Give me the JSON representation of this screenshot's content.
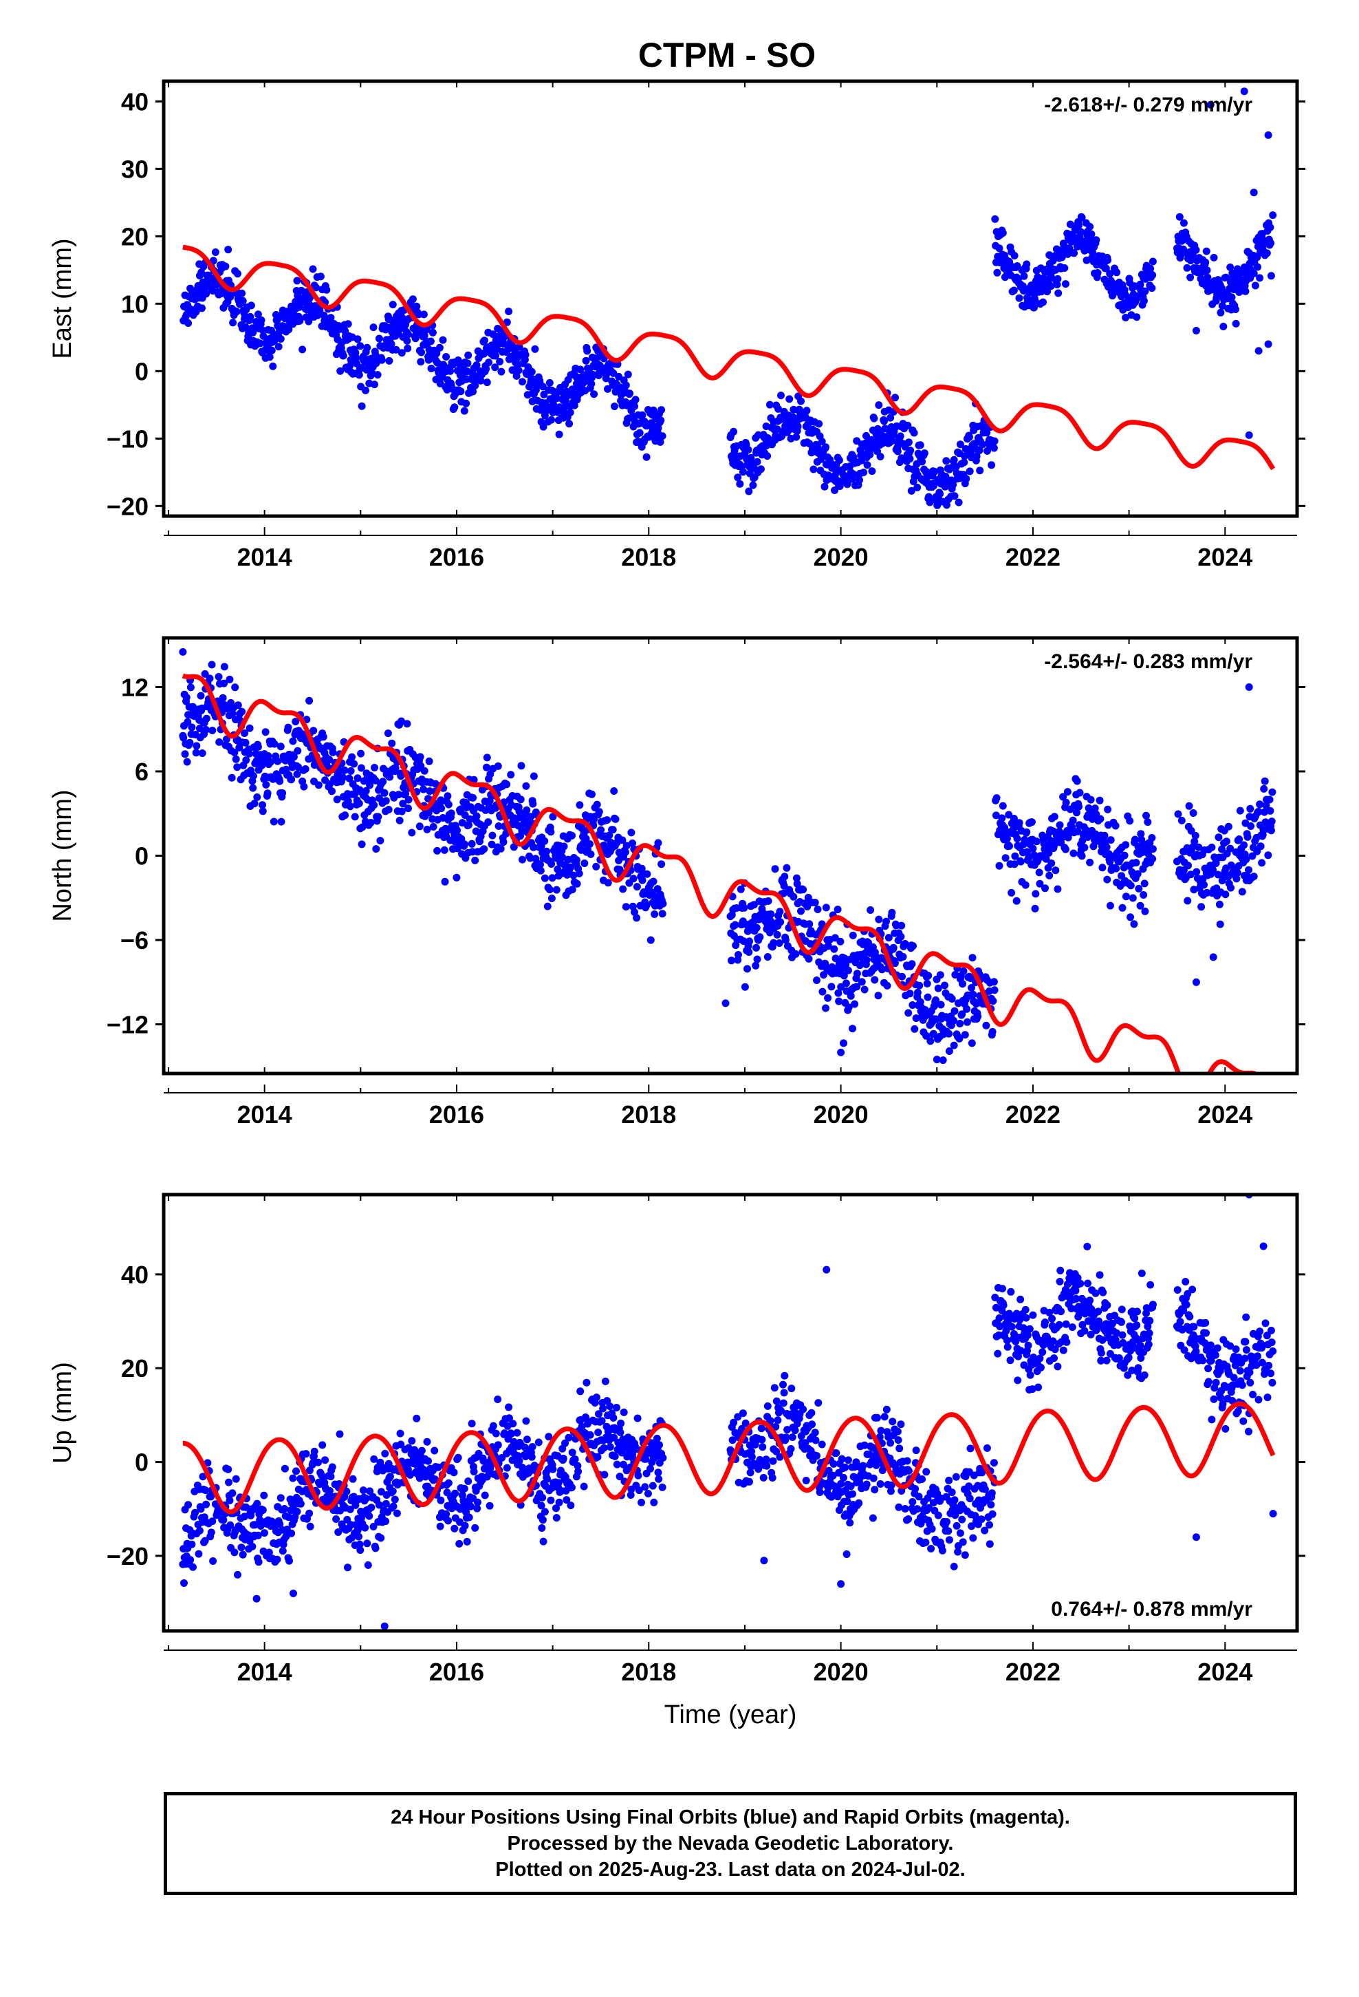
{
  "title": "CTPM - SO",
  "colors": {
    "final_orbits": "#0000ff",
    "model_fit": "#ff0000",
    "frame": "#000000"
  },
  "chart_data": [
    {
      "type": "scatter",
      "component": "east",
      "ylabel": "East (mm)",
      "xlabel": "",
      "xlim": [
        2012.95,
        2024.75
      ],
      "ylim": [
        -21.5,
        43
      ],
      "yticks": [
        -20,
        -10,
        0,
        10,
        20,
        30,
        40
      ],
      "xticks": [
        2014,
        2016,
        2018,
        2020,
        2022,
        2024
      ],
      "rate_label": "-2.618+/- 0.279 mm/yr",
      "rate_position": "top-right",
      "data_segments": [
        [
          2013.15,
          2018.15
        ],
        [
          2018.85,
          2021.6
        ],
        [
          2021.6,
          2023.25
        ],
        [
          2023.5,
          2024.5
        ]
      ],
      "trend_points": [
        [
          2013.15,
          11.2
        ],
        [
          2018.15,
          -5.2
        ],
        [
          2018.85,
          -9.5
        ],
        [
          2021.6,
          -14.5
        ],
        [
          2021.6,
          16.5
        ],
        [
          2023.25,
          14.5
        ],
        [
          2023.5,
          15.5
        ],
        [
          2024.5,
          15.5
        ]
      ],
      "seasonal_amplitude": 4.0,
      "scatter_sd": 1.8,
      "fit_curve": {
        "offset_at_2013_15": 16.5,
        "rate": -2.618,
        "annual_amplitude": 2.5,
        "semiannual_amplitude": 0.6
      },
      "outliers": [
        [
          2024.2,
          41.5
        ],
        [
          2024.45,
          35
        ],
        [
          2023.85,
          39.5
        ],
        [
          2024.25,
          -9.5
        ],
        [
          2024.3,
          26.5
        ],
        [
          2024.35,
          3
        ],
        [
          2024.45,
          4
        ],
        [
          2023.7,
          6
        ]
      ]
    },
    {
      "type": "scatter",
      "component": "north",
      "ylabel": "North (mm)",
      "xlabel": "",
      "xlim": [
        2012.95,
        2024.75
      ],
      "ylim": [
        -15.5,
        15.5
      ],
      "yticks": [
        -12,
        -6,
        0,
        6,
        12
      ],
      "xticks": [
        2014,
        2016,
        2018,
        2020,
        2022,
        2024
      ],
      "rate_label": "-2.564+/- 0.283 mm/yr",
      "rate_position": "top-right",
      "data_segments": [
        [
          2013.15,
          2018.15
        ],
        [
          2018.85,
          2021.6
        ],
        [
          2021.6,
          2023.25
        ],
        [
          2023.5,
          2024.5
        ]
      ],
      "trend_points": [
        [
          2013.15,
          9.5
        ],
        [
          2018.15,
          -1.5
        ],
        [
          2018.85,
          -3.5
        ],
        [
          2021.6,
          -11.5
        ],
        [
          2021.6,
          1.5
        ],
        [
          2023.25,
          0.5
        ],
        [
          2023.5,
          -1.5
        ],
        [
          2024.5,
          1.5
        ]
      ],
      "seasonal_amplitude": 1.5,
      "scatter_sd": 1.5,
      "fit_curve": {
        "offset_at_2013_15": 12,
        "rate": -2.564,
        "annual_amplitude": 1.5,
        "semiannual_amplitude": 0.7
      },
      "outliers": [
        [
          2013.15,
          14.5
        ],
        [
          2024.25,
          12
        ],
        [
          2018.8,
          -10.5
        ],
        [
          2020.0,
          -14
        ],
        [
          2021.0,
          -14.5
        ],
        [
          2023.7,
          -9
        ]
      ]
    },
    {
      "type": "scatter",
      "component": "up",
      "ylabel": "Up (mm)",
      "xlabel": "Time (year)",
      "xlim": [
        2012.95,
        2024.75
      ],
      "ylim": [
        -36,
        57
      ],
      "yticks": [
        -20,
        0,
        20,
        40
      ],
      "xticks": [
        2014,
        2016,
        2018,
        2020,
        2022,
        2024
      ],
      "rate_label": "0.764+/- 0.878 mm/yr",
      "rate_position": "bottom-right",
      "data_segments": [
        [
          2013.15,
          2018.15
        ],
        [
          2018.85,
          2021.6
        ],
        [
          2021.6,
          2023.25
        ],
        [
          2023.5,
          2024.5
        ]
      ],
      "trend_points": [
        [
          2013.15,
          -15
        ],
        [
          2018.15,
          5
        ],
        [
          2018.85,
          8
        ],
        [
          2021.6,
          -12
        ],
        [
          2021.6,
          28
        ],
        [
          2023.25,
          30
        ],
        [
          2023.5,
          26
        ],
        [
          2024.5,
          18
        ]
      ],
      "seasonal_amplitude": 5.0,
      "scatter_sd": 4.5,
      "fit_curve": {
        "offset_at_2013_15": -3,
        "rate": 0.764,
        "annual_amplitude": 7.5,
        "semiannual_amplitude": 0.5
      },
      "outliers": [
        [
          2015.25,
          -35
        ],
        [
          2014.3,
          -28
        ],
        [
          2019.85,
          41
        ],
        [
          2024.25,
          57
        ],
        [
          2024.4,
          46
        ],
        [
          2023.7,
          -16
        ],
        [
          2024.5,
          -11
        ],
        [
          2020.0,
          -26
        ],
        [
          2019.2,
          -21
        ]
      ]
    }
  ],
  "footer": {
    "line1": "24 Hour Positions Using Final Orbits (blue) and Rapid Orbits (magenta).",
    "line2": "Processed by the Nevada Geodetic Laboratory.",
    "line3": "Plotted on 2025-Aug-23. Last data on 2024-Jul-02."
  }
}
